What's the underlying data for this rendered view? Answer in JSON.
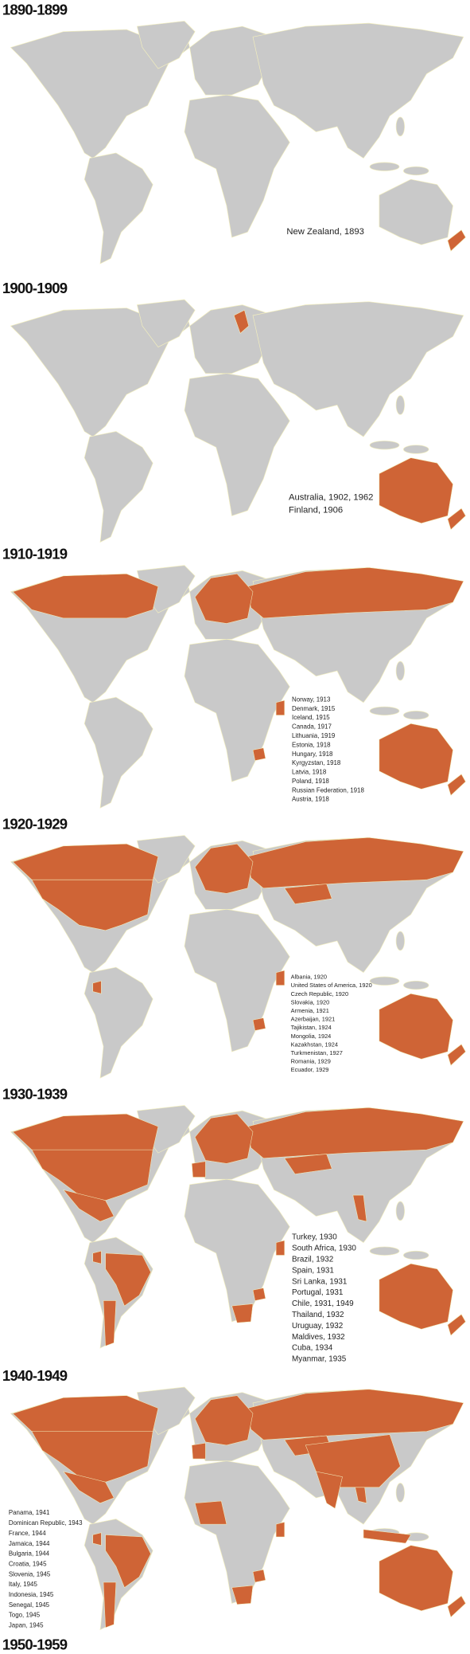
{
  "sections": [
    {
      "title": "1890-1899",
      "entries": [
        "New Zealand, 1893"
      ]
    },
    {
      "title": "1900-1909",
      "entries": [
        "Australia, 1902, 1962",
        "Finland, 1906"
      ]
    },
    {
      "title": "1910-1919",
      "entries": [
        "Norway, 1913",
        "Denmark, 1915",
        "Iceland, 1915",
        "Canada, 1917",
        "Lithuania, 1919",
        "Estonia, 1918",
        "Hungary, 1918",
        "Kyrgyzstan, 1918",
        "Latvia, 1918",
        "Poland, 1918",
        "Russian Federation, 1918",
        "Austria, 1918"
      ]
    },
    {
      "title": "1920-1929",
      "entries": [
        "Albania, 1920",
        "United States of America, 1920",
        "Czech Republic, 1920",
        "Slovakia, 1920",
        "Armenia, 1921",
        "Azerbaijan, 1921",
        "Tajikistan, 1924",
        "Mongolia, 1924",
        "Kazakhstan, 1924",
        "Turkmenistan, 1927",
        "Romania, 1929",
        "Ecuador, 1929"
      ]
    },
    {
      "title": "1930-1939",
      "entries": [
        "Turkey, 1930",
        "South Africa, 1930",
        "Brazil, 1932",
        "Spain, 1931",
        "Sri Lanka, 1931",
        "Portugal, 1931",
        "Chile, 1931, 1949",
        "Thailand, 1932",
        "Uruguay, 1932",
        "Maldives, 1932",
        "Cuba, 1934",
        "Myanmar, 1935"
      ]
    },
    {
      "title": "1940-1949",
      "entries": [
        "Panama, 1941",
        "Dominican Republic, 1943",
        "France, 1944",
        "Jamaica, 1944",
        "Bulgaria, 1944",
        "Croatia, 1945",
        "Slovenia, 1945",
        "Italy, 1945",
        "Indonesia, 1945",
        "Senegal, 1945",
        "Togo, 1945",
        "Japan, 1945"
      ]
    },
    {
      "title": "1950-1959"
    }
  ]
}
